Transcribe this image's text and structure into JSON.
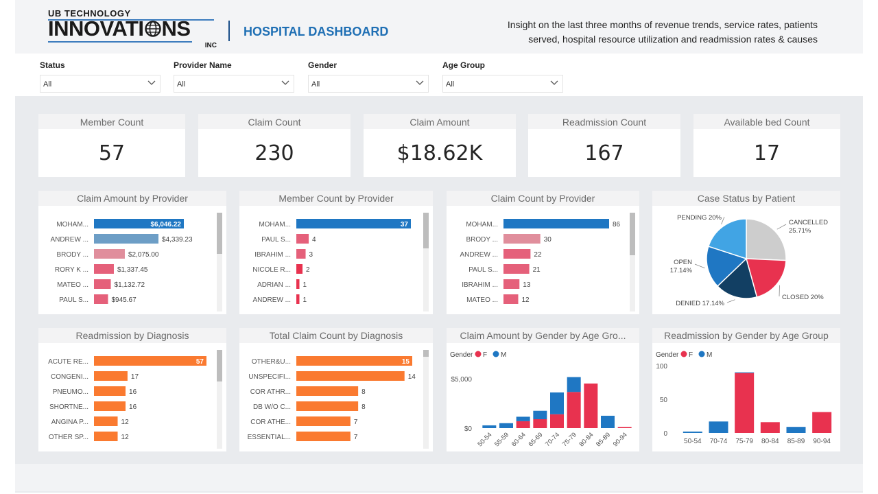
{
  "header": {
    "logo_top": "UB TECHNOLOGY",
    "logo_main": "INNOVATI",
    "logo_main_end": "NS",
    "logo_inc": "INC",
    "title": "HOSPITAL DASHBOARD",
    "subtitle_line1": "Insight on the last three months of revenue trends, service rates, patients",
    "subtitle_line2": "served, hospital resource utilization and readmission rates & causes"
  },
  "filters": [
    {
      "label": "Status",
      "value": "All"
    },
    {
      "label": "Provider Name",
      "value": "All"
    },
    {
      "label": "Gender",
      "value": "All"
    },
    {
      "label": "Age Group",
      "value": "All"
    }
  ],
  "kpis": [
    {
      "title": "Member Count",
      "value": "57"
    },
    {
      "title": "Claim Count",
      "value": "230"
    },
    {
      "title": "Claim Amount",
      "value": "$18.62K"
    },
    {
      "title": "Readmission Count",
      "value": "167"
    },
    {
      "title": "Available bed Count",
      "value": "17"
    }
  ],
  "colors": {
    "blue": "#1f77c3",
    "steel": "#6d9ec6",
    "pink_light": "#e08e9c",
    "pink": "#e5607a",
    "red": "#e8324f",
    "orange": "#fa7a30",
    "navy": "#123f63",
    "sky": "#41a4e4",
    "grey": "#cdcdcd"
  },
  "chart_data": [
    {
      "id": "claim_amount_by_provider",
      "type": "bar",
      "orientation": "horizontal",
      "title": "Claim Amount by Provider",
      "categories": [
        "MOHAM...",
        "ANDREW ...",
        "BRODY ...",
        "RORY K ...",
        "MATEO ...",
        "PAUL S..."
      ],
      "values": [
        6046.22,
        4339.23,
        2075.0,
        1337.45,
        1132.72,
        945.67
      ],
      "labels": [
        "$6,046.22",
        "$4,339.23",
        "$2,075.00",
        "$1,337.45",
        "$1,132.72",
        "$945.67"
      ],
      "bar_colors": [
        "#1f77c3",
        "#6d9ec6",
        "#e08e9c",
        "#e5607a",
        "#e5607a",
        "#e5607a"
      ],
      "xlim": [
        0,
        6046.22
      ]
    },
    {
      "id": "member_count_by_provider",
      "type": "bar",
      "orientation": "horizontal",
      "title": "Member Count by Provider",
      "categories": [
        "MOHAM...",
        "PAUL S...",
        "IBRAHIM ...",
        "NICOLE R...",
        "ADRIAN ...",
        "ANDREW ..."
      ],
      "values": [
        37,
        4,
        3,
        2,
        1,
        1
      ],
      "labels": [
        "37",
        "4",
        "3",
        "2",
        "1",
        "1"
      ],
      "bar_colors": [
        "#1f77c3",
        "#e5607a",
        "#e5607a",
        "#e8324f",
        "#e8324f",
        "#e8324f"
      ],
      "xlim": [
        0,
        37
      ]
    },
    {
      "id": "claim_count_by_provider",
      "type": "bar",
      "orientation": "horizontal",
      "title": "Claim Count by Provider",
      "categories": [
        "MOHAM...",
        "BRODY ...",
        "ANDREW ...",
        "PAUL S...",
        "IBRAHIM ...",
        "MATEO ..."
      ],
      "values": [
        86,
        30,
        22,
        21,
        13,
        12
      ],
      "labels": [
        "86",
        "30",
        "22",
        "21",
        "13",
        "12"
      ],
      "bar_colors": [
        "#1f77c3",
        "#e08e9c",
        "#e5607a",
        "#e5607a",
        "#e5607a",
        "#e5607a"
      ],
      "xlim": [
        0,
        86
      ]
    },
    {
      "id": "case_status_by_patient",
      "type": "pie",
      "title": "Case Status by Patient",
      "categories": [
        "CANCELLED",
        "CLOSED",
        "DENIED",
        "OPEN",
        "PENDING"
      ],
      "values": [
        25.71,
        20,
        17.14,
        17.14,
        20
      ],
      "labels": [
        "CANCELLED 25.71%",
        "CLOSED 20%",
        "DENIED 17.14%",
        "OPEN 17.14%",
        "PENDING 20%"
      ],
      "slice_colors": [
        "#cdcdcd",
        "#e8324f",
        "#123f63",
        "#1f77c3",
        "#41a4e4"
      ]
    },
    {
      "id": "readmission_by_diagnosis",
      "type": "bar",
      "orientation": "horizontal",
      "title": "Readmission by Diagnosis",
      "categories": [
        "ACUTE RE...",
        "CONGENI...",
        "PNEUMO...",
        "SHORTNE...",
        "ANGINA P...",
        "OTHER SP..."
      ],
      "values": [
        57,
        17,
        16,
        16,
        12,
        12
      ],
      "labels": [
        "57",
        "17",
        "16",
        "16",
        "12",
        "12"
      ],
      "bar_colors": [
        "#fa7a30",
        "#fa7a30",
        "#fa7a30",
        "#fa7a30",
        "#fa7a30",
        "#fa7a30"
      ],
      "xlim": [
        0,
        57
      ]
    },
    {
      "id": "total_claim_count_by_diagnosis",
      "type": "bar",
      "orientation": "horizontal",
      "title": "Total Claim Count by Diagnosis",
      "categories": [
        "OTHER&U...",
        "UNSPECIFI...",
        "COR ATHR...",
        "DB W/O C...",
        "COR ATHE...",
        "ESSENTIAL..."
      ],
      "values": [
        15,
        14,
        8,
        8,
        7,
        7
      ],
      "labels": [
        "15",
        "14",
        "8",
        "8",
        "7",
        "7"
      ],
      "bar_colors": [
        "#fa7a30",
        "#fa7a30",
        "#fa7a30",
        "#fa7a30",
        "#fa7a30",
        "#fa7a30"
      ],
      "xlim": [
        0,
        15
      ]
    },
    {
      "id": "claim_amount_by_gender_by_age_group",
      "type": "bar",
      "stacked": true,
      "title": "Claim Amount by Gender by Age Gro...",
      "legend_title": "Gender",
      "categories": [
        "50-54",
        "55-59",
        "60-64",
        "65-69",
        "70-74",
        "75-79",
        "80-84",
        "85-89",
        "90-94"
      ],
      "series": [
        {
          "name": "F",
          "color": "#e8324f",
          "values": [
            0,
            0,
            700,
            900,
            1400,
            3650,
            4500,
            0,
            120
          ]
        },
        {
          "name": "M",
          "color": "#1f77c3",
          "values": [
            280,
            500,
            450,
            850,
            2200,
            1500,
            0,
            1250,
            0
          ]
        }
      ],
      "yticks": [
        "$0",
        "$5,000"
      ],
      "ylim": [
        0,
        5400
      ]
    },
    {
      "id": "readmission_by_gender_by_age_group",
      "type": "bar",
      "stacked": true,
      "title": "Readmission by Gender by Age Group",
      "legend_title": "Gender",
      "categories": [
        "50-54",
        "70-74",
        "75-79",
        "80-84",
        "85-89",
        "90-94"
      ],
      "series": [
        {
          "name": "F",
          "color": "#e8324f",
          "values": [
            0,
            0,
            89,
            16,
            0,
            31
          ]
        },
        {
          "name": "M",
          "color": "#1f77c3",
          "values": [
            2,
            17,
            1,
            0,
            9,
            0
          ]
        }
      ],
      "yticks": [
        "0",
        "50",
        "100"
      ],
      "ylim": [
        0,
        108
      ]
    }
  ]
}
